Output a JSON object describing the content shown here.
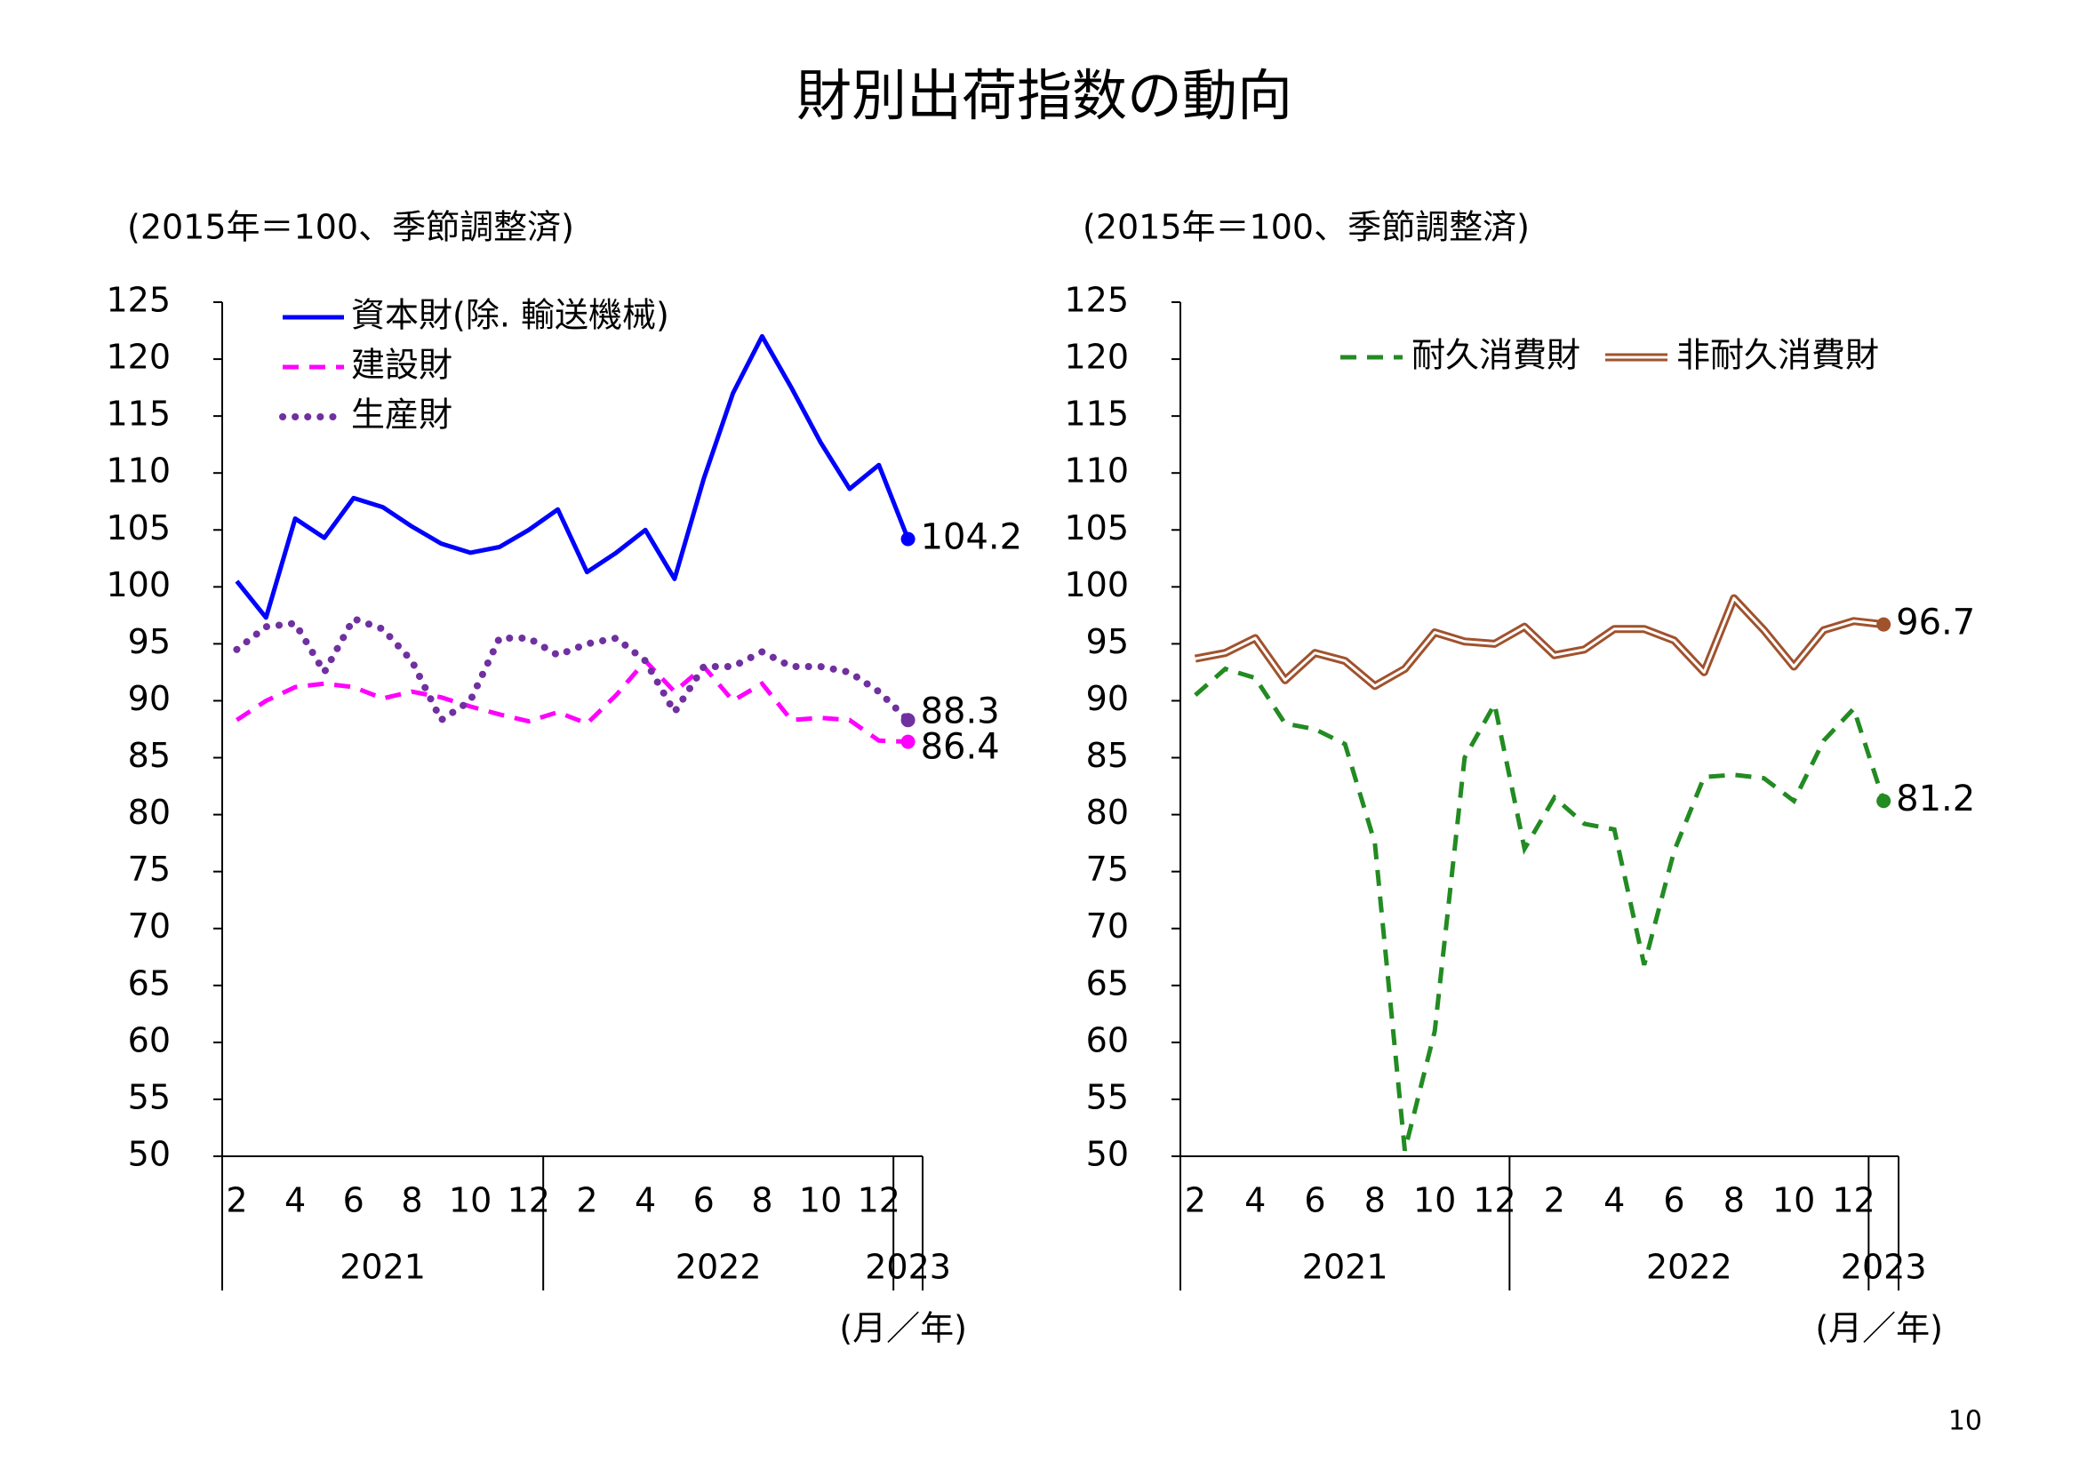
{
  "title": "財別出荷指数の動向",
  "page_number": "10",
  "chart_data": [
    {
      "type": "line",
      "subtitle": "(2015年＝100、季節調整済)",
      "xlabel": "(月／年)",
      "categories": [
        "2",
        null,
        "4",
        null,
        "6",
        null,
        "8",
        null,
        "10",
        null,
        "12",
        null,
        "2",
        null,
        "4",
        null,
        "6",
        null,
        "8",
        null,
        "10",
        null,
        "12",
        null
      ],
      "years": [
        "2021",
        "2022",
        "2023"
      ],
      "ylim": [
        50,
        125
      ],
      "yticks": [
        50,
        55,
        60,
        65,
        70,
        75,
        80,
        85,
        90,
        95,
        100,
        105,
        110,
        115,
        120,
        125
      ],
      "legend": "upper left",
      "series": [
        {
          "name": "資本財(除. 輸送機械)",
          "color": "#0000ff",
          "line_style": "solid",
          "values": [
            100.5,
            97.3,
            106,
            104.3,
            107.8,
            107,
            105.3,
            103.8,
            103,
            103.5,
            105,
            106.8,
            101.3,
            103,
            105,
            100.7,
            109.5,
            117,
            122,
            117.5,
            112.7,
            108.6,
            110.7,
            104.2
          ]
        },
        {
          "name": "建設財",
          "color": "#ff00ff",
          "line_style": "dashed",
          "values": [
            88.3,
            90,
            91.2,
            91.5,
            91.2,
            90.2,
            90.8,
            90.3,
            89.5,
            88.8,
            88.2,
            89,
            88,
            90.5,
            93.5,
            90.8,
            93,
            90,
            91.5,
            88.3,
            88.5,
            88.3,
            86.5,
            86.4
          ]
        },
        {
          "name": "生産財",
          "color": "#7030a0",
          "line_style": "dotted",
          "values": [
            94.5,
            96.5,
            96.8,
            92.5,
            97.2,
            96.3,
            93.5,
            88.3,
            90,
            95.5,
            95.5,
            94,
            95,
            95.5,
            93.5,
            89,
            93,
            93,
            94.3,
            93,
            93,
            92.5,
            90.8,
            88.3
          ]
        }
      ]
    },
    {
      "type": "line",
      "subtitle": "(2015年＝100、季節調整済)",
      "xlabel": "(月／年)",
      "categories": [
        "2",
        null,
        "4",
        null,
        "6",
        null,
        "8",
        null,
        "10",
        null,
        "12",
        null,
        "2",
        null,
        "4",
        null,
        "6",
        null,
        "8",
        null,
        "10",
        null,
        "12",
        null
      ],
      "years": [
        "2021",
        "2022",
        "2023"
      ],
      "ylim": [
        50,
        125
      ],
      "yticks": [
        50,
        55,
        60,
        65,
        70,
        75,
        80,
        85,
        90,
        95,
        100,
        105,
        110,
        115,
        120,
        125
      ],
      "legend": "upper right",
      "series": [
        {
          "name": "耐久消費財",
          "color": "#228b22",
          "line_style": "dashed",
          "values": [
            90.5,
            92.8,
            92,
            88,
            87.5,
            86.2,
            77.5,
            50.5,
            61,
            85,
            89.7,
            77,
            81.5,
            79.2,
            78.7,
            66.8,
            76.8,
            83.3,
            83.5,
            83.2,
            81.2,
            86.5,
            89.3,
            81.2
          ]
        },
        {
          "name": "非耐久消費財",
          "color": "#a0522d",
          "line_style": "double",
          "values": [
            93.7,
            94.2,
            95.5,
            91.8,
            94.2,
            93.5,
            91.3,
            92.8,
            96,
            95.2,
            95,
            96.5,
            94,
            94.5,
            96.3,
            96.3,
            95.3,
            92.5,
            99,
            96.2,
            93,
            96.2,
            97,
            96.7
          ]
        }
      ]
    }
  ]
}
